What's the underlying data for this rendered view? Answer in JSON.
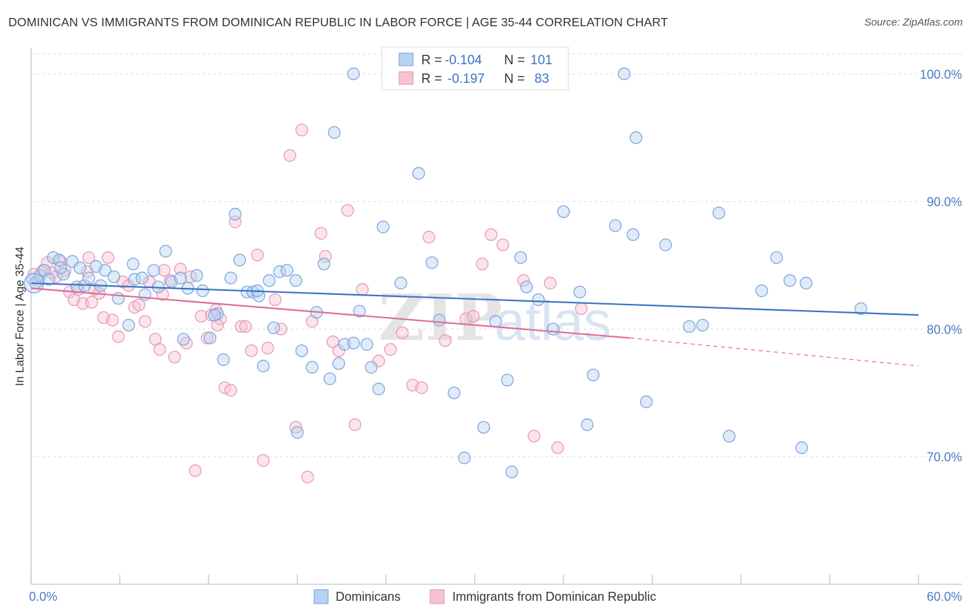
{
  "title": "DOMINICAN VS IMMIGRANTS FROM DOMINICAN REPUBLIC IN LABOR FORCE | AGE 35-44 CORRELATION CHART",
  "source": "Source: ZipAtlas.com",
  "watermark": {
    "zip": "ZIP",
    "atlas": "atlas"
  },
  "colors": {
    "blue": "#3a73c4",
    "blue_fill": "#b9d2f2",
    "pink": "#e06c95",
    "pink_fill": "#f7c3d3",
    "grid": "#dddddd"
  },
  "legend": {
    "rows": [
      {
        "r_label": "R =",
        "r_value": "-0.104",
        "n_label": "N =",
        "n_value": "101"
      },
      {
        "r_label": "R =",
        "r_value": "-0.197",
        "n_label": "N =",
        "n_value": "83"
      }
    ]
  },
  "chart_data": {
    "type": "scatter",
    "xlabel": "",
    "ylabel": "In Labor Force | Age 35-44",
    "xlim": [
      0,
      60
    ],
    "ylim": [
      60,
      102
    ],
    "x_tick_labels": [
      "0.0%",
      "60.0%"
    ],
    "y_ticks": [
      70,
      80,
      90,
      100
    ],
    "y_tick_labels": [
      "70.0%",
      "80.0%",
      "90.0%",
      "100.0%"
    ],
    "grid": "horizontal dashed",
    "legend_position": "top-center",
    "series": [
      {
        "name": "Dominicans",
        "color": "#3a73c4",
        "trend": {
          "x": [
            0,
            60
          ],
          "y": [
            83.6,
            81.1
          ]
        },
        "points": [
          [
            0.1,
            83.9
          ],
          [
            0.3,
            83.6
          ],
          [
            0.6,
            84.2
          ],
          [
            0.9,
            84.6
          ],
          [
            1.2,
            83.9
          ],
          [
            1.5,
            85.6
          ],
          [
            1.9,
            85.4
          ],
          [
            2.2,
            84.3
          ],
          [
            2.8,
            85.3
          ],
          [
            3.1,
            83.3
          ],
          [
            3.3,
            84.8
          ],
          [
            3.6,
            83.4
          ],
          [
            3.9,
            84.0
          ],
          [
            4.4,
            84.9
          ],
          [
            4.7,
            83.4
          ],
          [
            5.0,
            84.6
          ],
          [
            5.6,
            84.1
          ],
          [
            5.9,
            82.4
          ],
          [
            6.6,
            80.3
          ],
          [
            7.0,
            83.9
          ],
          [
            7.5,
            84.0
          ],
          [
            7.7,
            82.7
          ],
          [
            8.3,
            84.6
          ],
          [
            8.6,
            83.3
          ],
          [
            9.1,
            86.1
          ],
          [
            9.5,
            83.7
          ],
          [
            10.1,
            84.0
          ],
          [
            10.6,
            83.2
          ],
          [
            11.2,
            84.2
          ],
          [
            11.6,
            83.0
          ],
          [
            12.1,
            79.3
          ],
          [
            12.6,
            81.2
          ],
          [
            13.0,
            77.6
          ],
          [
            13.5,
            84.0
          ],
          [
            13.8,
            89.0
          ],
          [
            14.1,
            85.4
          ],
          [
            14.6,
            82.9
          ],
          [
            15.0,
            82.9
          ],
          [
            15.4,
            82.6
          ],
          [
            15.7,
            77.1
          ],
          [
            16.1,
            83.8
          ],
          [
            16.4,
            80.1
          ],
          [
            16.8,
            84.5
          ],
          [
            17.3,
            84.6
          ],
          [
            17.9,
            83.8
          ],
          [
            18.3,
            78.3
          ],
          [
            19.0,
            77.0
          ],
          [
            19.3,
            81.3
          ],
          [
            19.8,
            85.1
          ],
          [
            20.2,
            76.1
          ],
          [
            20.5,
            95.4
          ],
          [
            20.8,
            77.3
          ],
          [
            21.2,
            78.8
          ],
          [
            21.8,
            78.9
          ],
          [
            22.2,
            81.4
          ],
          [
            22.7,
            78.8
          ],
          [
            23.0,
            77.0
          ],
          [
            23.5,
            75.3
          ],
          [
            23.8,
            88.0
          ],
          [
            25.0,
            83.6
          ],
          [
            21.8,
            100.0
          ],
          [
            26.2,
            92.2
          ],
          [
            27.1,
            85.2
          ],
          [
            27.6,
            80.7
          ],
          [
            28.6,
            75.0
          ],
          [
            29.3,
            69.9
          ],
          [
            30.6,
            72.3
          ],
          [
            31.4,
            80.6
          ],
          [
            32.2,
            76.0
          ],
          [
            32.5,
            68.8
          ],
          [
            33.1,
            85.6
          ],
          [
            33.5,
            83.3
          ],
          [
            34.3,
            82.3
          ],
          [
            35.3,
            80.0
          ],
          [
            36.0,
            89.2
          ],
          [
            37.1,
            82.9
          ],
          [
            37.6,
            72.5
          ],
          [
            38.0,
            76.4
          ],
          [
            39.5,
            88.1
          ],
          [
            40.7,
            87.4
          ],
          [
            40.9,
            95.0
          ],
          [
            41.6,
            74.3
          ],
          [
            42.9,
            86.6
          ],
          [
            44.5,
            80.2
          ],
          [
            45.4,
            80.3
          ],
          [
            46.5,
            89.1
          ],
          [
            47.2,
            71.6
          ],
          [
            49.4,
            83.0
          ],
          [
            50.4,
            85.6
          ],
          [
            51.3,
            83.8
          ],
          [
            52.1,
            70.7
          ],
          [
            52.4,
            83.6
          ],
          [
            56.1,
            81.6
          ],
          [
            2.0,
            84.8
          ],
          [
            18.0,
            71.9
          ],
          [
            10.3,
            79.2
          ],
          [
            15.3,
            83.0
          ],
          [
            6.9,
            85.1
          ],
          [
            12.4,
            81.1
          ],
          [
            28.2,
            100.0
          ],
          [
            40.1,
            100.0
          ]
        ]
      },
      {
        "name": "Immigrants from Dominican Republic",
        "color": "#e06c95",
        "trend": {
          "x": [
            0,
            40.5
          ],
          "y": [
            83.2,
            79.3
          ]
        },
        "trend_dashed": {
          "x": [
            40.5,
            60
          ],
          "y": [
            79.3,
            77.1
          ]
        },
        "points": [
          [
            0.2,
            84.3
          ],
          [
            0.5,
            83.8
          ],
          [
            0.8,
            84.6
          ],
          [
            1.1,
            85.2
          ],
          [
            1.4,
            84.4
          ],
          [
            1.7,
            84.1
          ],
          [
            2.0,
            85.3
          ],
          [
            2.3,
            84.6
          ],
          [
            2.6,
            82.9
          ],
          [
            2.9,
            82.3
          ],
          [
            3.2,
            83.1
          ],
          [
            3.5,
            82.0
          ],
          [
            3.8,
            84.5
          ],
          [
            4.1,
            82.1
          ],
          [
            4.3,
            83.1
          ],
          [
            4.6,
            82.8
          ],
          [
            4.9,
            80.9
          ],
          [
            5.2,
            85.6
          ],
          [
            5.5,
            80.7
          ],
          [
            5.9,
            79.4
          ],
          [
            6.2,
            83.7
          ],
          [
            6.6,
            83.4
          ],
          [
            7.0,
            81.7
          ],
          [
            7.3,
            81.9
          ],
          [
            7.7,
            80.6
          ],
          [
            8.0,
            83.7
          ],
          [
            8.4,
            79.2
          ],
          [
            8.7,
            78.4
          ],
          [
            9.0,
            84.6
          ],
          [
            9.4,
            83.8
          ],
          [
            9.7,
            77.8
          ],
          [
            10.1,
            84.7
          ],
          [
            10.5,
            78.9
          ],
          [
            10.8,
            84.1
          ],
          [
            11.1,
            68.9
          ],
          [
            11.5,
            81.0
          ],
          [
            11.9,
            79.3
          ],
          [
            12.2,
            81.1
          ],
          [
            12.5,
            81.5
          ],
          [
            12.8,
            80.8
          ],
          [
            13.1,
            75.4
          ],
          [
            13.5,
            75.2
          ],
          [
            13.8,
            88.4
          ],
          [
            14.2,
            80.2
          ],
          [
            14.5,
            80.2
          ],
          [
            14.9,
            78.3
          ],
          [
            15.3,
            85.8
          ],
          [
            15.7,
            69.7
          ],
          [
            16.0,
            78.5
          ],
          [
            16.5,
            82.3
          ],
          [
            16.9,
            80.0
          ],
          [
            17.5,
            93.6
          ],
          [
            17.9,
            72.3
          ],
          [
            18.3,
            95.6
          ],
          [
            18.7,
            68.4
          ],
          [
            19.0,
            80.6
          ],
          [
            19.6,
            87.5
          ],
          [
            19.9,
            85.7
          ],
          [
            20.4,
            79.0
          ],
          [
            20.8,
            78.3
          ],
          [
            21.4,
            89.3
          ],
          [
            21.9,
            72.5
          ],
          [
            22.4,
            83.1
          ],
          [
            23.5,
            77.5
          ],
          [
            24.3,
            78.4
          ],
          [
            25.1,
            79.7
          ],
          [
            25.8,
            75.6
          ],
          [
            26.4,
            75.4
          ],
          [
            26.9,
            87.2
          ],
          [
            28.0,
            79.1
          ],
          [
            29.4,
            80.8
          ],
          [
            29.9,
            81.0
          ],
          [
            30.5,
            85.1
          ],
          [
            31.1,
            87.4
          ],
          [
            31.9,
            86.6
          ],
          [
            33.3,
            83.8
          ],
          [
            34.0,
            71.6
          ],
          [
            35.1,
            83.6
          ],
          [
            35.6,
            70.7
          ],
          [
            37.2,
            81.6
          ],
          [
            8.9,
            82.7
          ],
          [
            12.6,
            80.3
          ],
          [
            3.9,
            85.6
          ]
        ]
      }
    ],
    "bottom_legend": [
      "Dominicans",
      "Immigrants from Dominican Republic"
    ]
  }
}
